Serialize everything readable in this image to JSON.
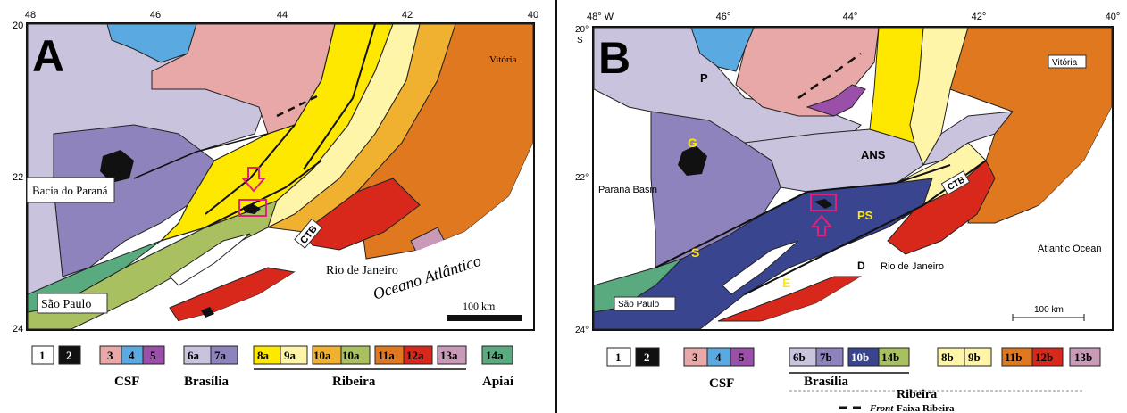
{
  "colors": {
    "unit1": "#ffffff",
    "unit2": "#111111",
    "unit3": "#e8a8a8",
    "unit4": "#5aa9e0",
    "unit5": "#9a4fa8",
    "unit6": "#c9c3dd",
    "unit7": "#8f83bd",
    "unit8": "#ffe800",
    "unit9": "#fff5a8",
    "unit10": "#f0b030",
    "unit10b": "#3a4590",
    "unit10c": "#a8c060",
    "unit11": "#e07820",
    "unit12": "#d8281c",
    "unit13": "#c89ab8",
    "unit14": "#5aaa80",
    "marker": "#e0207a",
    "ocean": "#ffffff"
  },
  "panelA": {
    "letter": "A",
    "lon_ticks": [
      "48",
      "46",
      "44",
      "42",
      "40"
    ],
    "lat_ticks": [
      "20",
      "22",
      "24"
    ],
    "place_bacia": "Bacia do Paraná",
    "place_sp": "São Paulo",
    "place_rj": "Rio de Janeiro",
    "place_vitoria": "Vitória",
    "place_ocean": "Oceano Atlântico",
    "ctb": "CTB",
    "scale": "100 km",
    "legend": {
      "u1": "1",
      "u2": "2",
      "u3": "3",
      "u4": "4",
      "u5": "5",
      "u6": "6a",
      "u7": "7a",
      "u8": "8a",
      "u9": "9a",
      "u10": "10a",
      "u10b": "10a",
      "u11": "11a",
      "u12": "12a",
      "u13": "13a",
      "u14": "14a",
      "g_csf": "CSF",
      "g_bras": "Brasília",
      "g_rib": "Ribeira",
      "g_apiai": "Apiaí"
    }
  },
  "panelB": {
    "letter": "B",
    "lon_ticks": [
      "48° W",
      "46°",
      "44°",
      "42°",
      "40°"
    ],
    "lat_ticks": [
      "20°",
      "S",
      "22°",
      "24°"
    ],
    "place_parana": "Paraná Basin",
    "place_sp": "São Paulo",
    "place_rj": "Rio de Janeiro",
    "place_vitoria": "Vitória",
    "place_ocean": "Atlantic Ocean",
    "ctb": "CTB",
    "scale": "100 km",
    "units": {
      "p": "P",
      "g": "G",
      "s": "S",
      "e": "E",
      "ps": "PS",
      "ans": "ANS",
      "d": "D"
    },
    "legend": {
      "u1": "1",
      "u2": "2",
      "u3": "3",
      "u4": "4",
      "u5": "5",
      "u6": "6b",
      "u7": "7b",
      "u10": "10b",
      "u14": "14b",
      "u8": "8b",
      "u9": "9b",
      "u11": "11b",
      "u12": "12b",
      "u13": "13b",
      "g_csf": "CSF",
      "g_bras": "Brasília",
      "g_rib": "Ribeira",
      "front_italic": "Front",
      "front_rest": " Faixa Ribeira"
    }
  }
}
